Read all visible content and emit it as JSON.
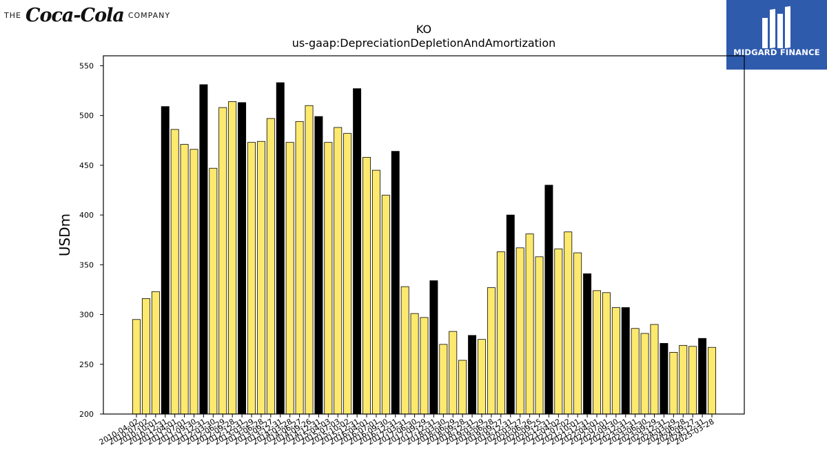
{
  "brand": {
    "prefix": "THE",
    "name": "Coca-Cola",
    "suffix": "COMPANY"
  },
  "logo": {
    "text": "MIDGARD FINANCE",
    "color": "#2f5bad"
  },
  "chart_data": {
    "type": "bar",
    "title": "KO",
    "subtitle": "us-gaap:DepreciationDepletionAndAmortization",
    "ylabel": "USDm",
    "xlabel": "",
    "ylim": [
      200,
      560
    ],
    "yticks": [
      200,
      250,
      300,
      350,
      400,
      450,
      500,
      550
    ],
    "grid": false,
    "colors": {
      "quarter": "#fde96e",
      "annual": "#000000",
      "edge": "#000000"
    },
    "categories": [
      "2010-04-02",
      "2010-07-02",
      "2010-10-01",
      "2010-12-31",
      "2011-04-01",
      "2011-07-01",
      "2011-09-30",
      "2011-12-31",
      "2012-03-30",
      "2012-06-29",
      "2012-09-28",
      "2012-12-31",
      "2013-03-29",
      "2013-06-28",
      "2013-09-27",
      "2013-12-31",
      "2014-03-28",
      "2014-06-27",
      "2014-09-26",
      "2014-12-31",
      "2015-04-03",
      "2015-07-03",
      "2015-10-02",
      "2015-12-31",
      "2016-04-01",
      "2016-07-01",
      "2016-09-30",
      "2016-12-31",
      "2017-03-31",
      "2017-06-30",
      "2017-09-29",
      "2017-12-31",
      "2018-03-30",
      "2018-06-29",
      "2018-09-28",
      "2018-12-31",
      "2019-03-29",
      "2019-06-28",
      "2019-09-27",
      "2019-12-31",
      "2020-03-27",
      "2020-06-26",
      "2020-09-25",
      "2020-12-31",
      "2021-04-02",
      "2021-07-02",
      "2021-10-01",
      "2021-12-31",
      "2022-04-01",
      "2022-07-01",
      "2022-09-30",
      "2022-12-31",
      "2023-03-31",
      "2023-06-30",
      "2023-09-29",
      "2023-12-31",
      "2024-03-29",
      "2024-06-28",
      "2024-09-27",
      "2024-12-31",
      "2025-03-28"
    ],
    "values": [
      295,
      316,
      323,
      509,
      486,
      471,
      466,
      531,
      447,
      508,
      514,
      513,
      473,
      474,
      497,
      533,
      473,
      494,
      510,
      499,
      473,
      488,
      482,
      527,
      458,
      445,
      420,
      464,
      328,
      301,
      297,
      334,
      270,
      283,
      254,
      279,
      275,
      327,
      363,
      400,
      367,
      381,
      358,
      430,
      366,
      383,
      362,
      341,
      324,
      322,
      307,
      307,
      286,
      281,
      290,
      271,
      262,
      269,
      268,
      276,
      267
    ],
    "annual": [
      false,
      false,
      false,
      true,
      false,
      false,
      false,
      true,
      false,
      false,
      false,
      true,
      false,
      false,
      false,
      true,
      false,
      false,
      false,
      true,
      false,
      false,
      false,
      true,
      false,
      false,
      false,
      true,
      false,
      false,
      false,
      true,
      false,
      false,
      false,
      true,
      false,
      false,
      false,
      true,
      false,
      false,
      false,
      true,
      false,
      false,
      false,
      true,
      false,
      false,
      false,
      true,
      false,
      false,
      false,
      true,
      false,
      false,
      false,
      true,
      false
    ]
  }
}
